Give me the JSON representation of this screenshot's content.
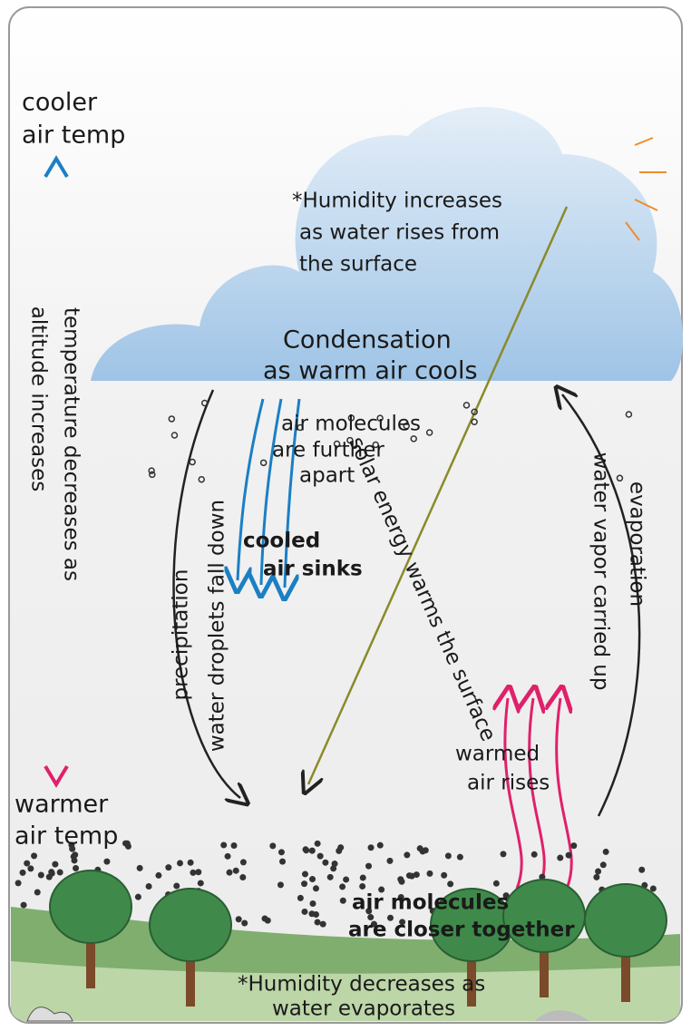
{
  "labels": {
    "cooler": [
      "cooler",
      "air temp"
    ],
    "temperature": [
      "temperature decreases as",
      "altitude increases"
    ],
    "warmer": [
      "warmer",
      "air temp"
    ],
    "humidity_top": [
      "*Humidity increases",
      "as water rises from",
      "the surface"
    ],
    "condensation": [
      "Condensation",
      "as warm air cools"
    ],
    "molecules_top": [
      "air molecules",
      "are further",
      "apart"
    ],
    "cooled": [
      "cooled",
      "air sinks"
    ],
    "precipitation": [
      "precipitation",
      "water droplets fall down"
    ],
    "solar": [
      "solar energy warms the surface"
    ],
    "evaporation": [
      "evaporation",
      "water vapor carried up"
    ],
    "warmed": [
      "warmed",
      "air rises"
    ],
    "molecules_bottom": [
      "air molecules",
      "are closer together"
    ],
    "humidity_bottom": [
      "*Humidity decreases as",
      "water evaporates"
    ]
  }
}
